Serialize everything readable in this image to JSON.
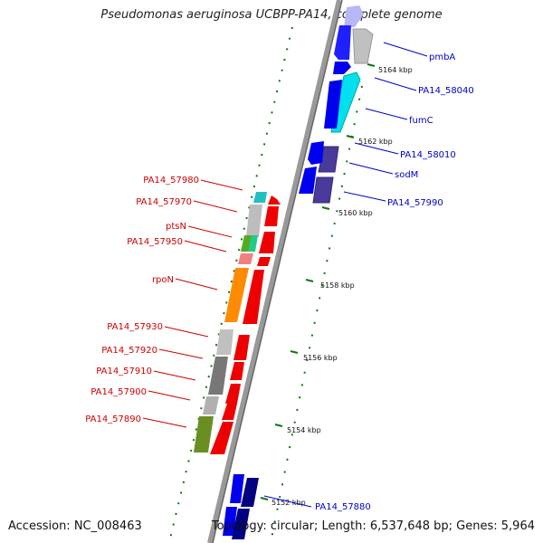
{
  "title": "Pseudomonas aeruginosa UCBPP-PA14, complete genome",
  "accession_text": "Accession: NC_008463",
  "topology_text": "Topology: circular; Length: 6,537,648 bp; Genes: 5,964",
  "colors": {
    "backbone": "#777777",
    "tick": "#0a7a0a",
    "label_left": "#cc0000",
    "label_right": "#0000cc"
  },
  "ticks": [
    {
      "text": "5152 kbp"
    },
    {
      "text": "5154 kbp"
    },
    {
      "text": "5156 kbp"
    },
    {
      "text": "5158 kbp"
    },
    {
      "text": "5160 kbp"
    },
    {
      "text": "5162 kbp"
    },
    {
      "text": "5164 kbp"
    }
  ],
  "labels_right": [
    {
      "text": "pmbA"
    },
    {
      "text": "PA14_58040"
    },
    {
      "text": "fumC"
    },
    {
      "text": "PA14_58010"
    },
    {
      "text": "sodM"
    },
    {
      "text": "PA14_57990"
    },
    {
      "text": "PA14_57880"
    }
  ],
  "labels_left": [
    {
      "text": "PA14_57980"
    },
    {
      "text": "PA14_57970"
    },
    {
      "text": "ptsN"
    },
    {
      "text": "PA14_57950"
    },
    {
      "text": "rpoN"
    },
    {
      "text": "PA14_57930"
    },
    {
      "text": "PA14_57920"
    },
    {
      "text": "PA14_57910"
    },
    {
      "text": "PA14_57900"
    },
    {
      "text": "PA14_57890"
    }
  ]
}
